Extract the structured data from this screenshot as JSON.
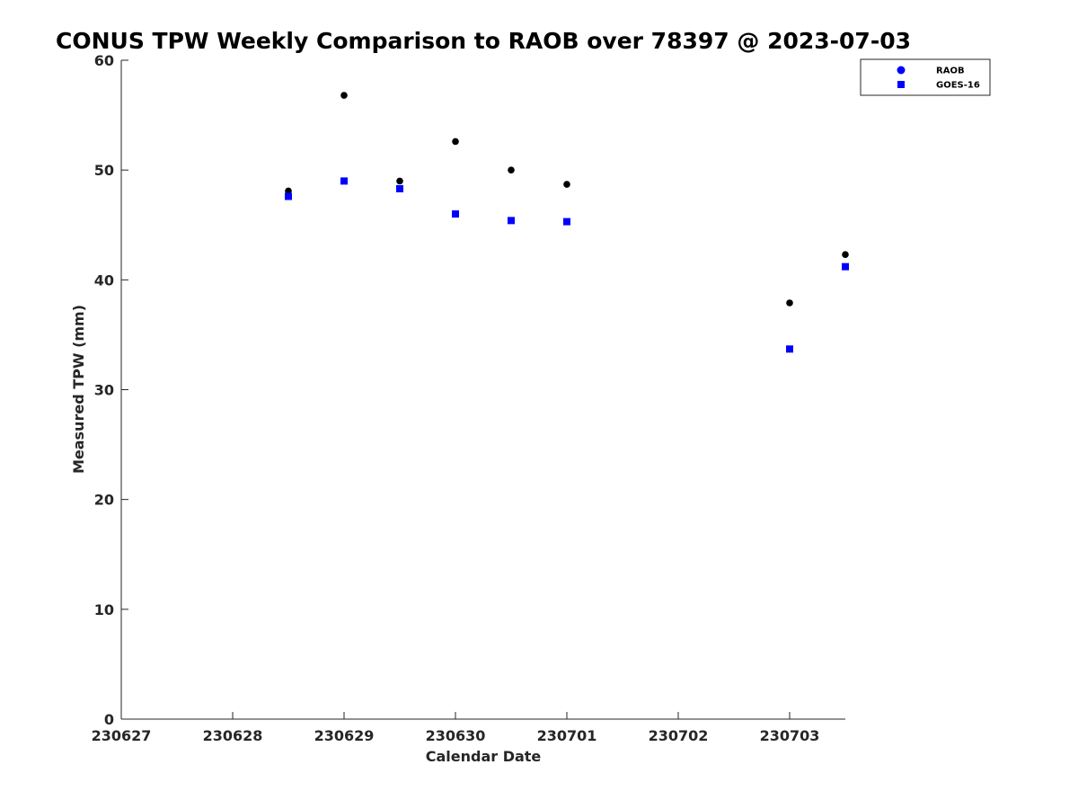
{
  "chart_data": {
    "type": "scatter",
    "title": "CONUS TPW Weekly Comparison to RAOB over 78397 @ 2023-07-03",
    "xlabel": "Calendar Date",
    "ylabel": "Measured TPW (mm)",
    "x_tick_labels": [
      "230627",
      "230628",
      "230629",
      "230630",
      "230701",
      "230702",
      "230703"
    ],
    "xlim": [
      0,
      6.5
    ],
    "ylim": [
      0,
      60
    ],
    "y_ticks": [
      0,
      10,
      20,
      30,
      40,
      50,
      60
    ],
    "legend": {
      "placement": "top-right"
    },
    "series": [
      {
        "name": "RAOB",
        "marker": "circle",
        "color": "#000000",
        "legend_color": "#0000ff",
        "points": [
          {
            "x": 1.5,
            "y": 48.1
          },
          {
            "x": 2.0,
            "y": 56.8
          },
          {
            "x": 2.5,
            "y": 49.0
          },
          {
            "x": 3.0,
            "y": 52.6
          },
          {
            "x": 3.5,
            "y": 50.0
          },
          {
            "x": 4.0,
            "y": 48.7
          },
          {
            "x": 6.0,
            "y": 37.9
          },
          {
            "x": 6.5,
            "y": 42.3
          }
        ]
      },
      {
        "name": "GOES-16",
        "marker": "square",
        "color": "#0000ff",
        "legend_color": "#0000ff",
        "points": [
          {
            "x": 1.5,
            "y": 47.6
          },
          {
            "x": 2.0,
            "y": 49.0
          },
          {
            "x": 2.5,
            "y": 48.3
          },
          {
            "x": 3.0,
            "y": 46.0
          },
          {
            "x": 3.5,
            "y": 45.4
          },
          {
            "x": 4.0,
            "y": 45.3
          },
          {
            "x": 6.0,
            "y": 33.7
          },
          {
            "x": 6.5,
            "y": 41.2
          }
        ]
      }
    ]
  }
}
